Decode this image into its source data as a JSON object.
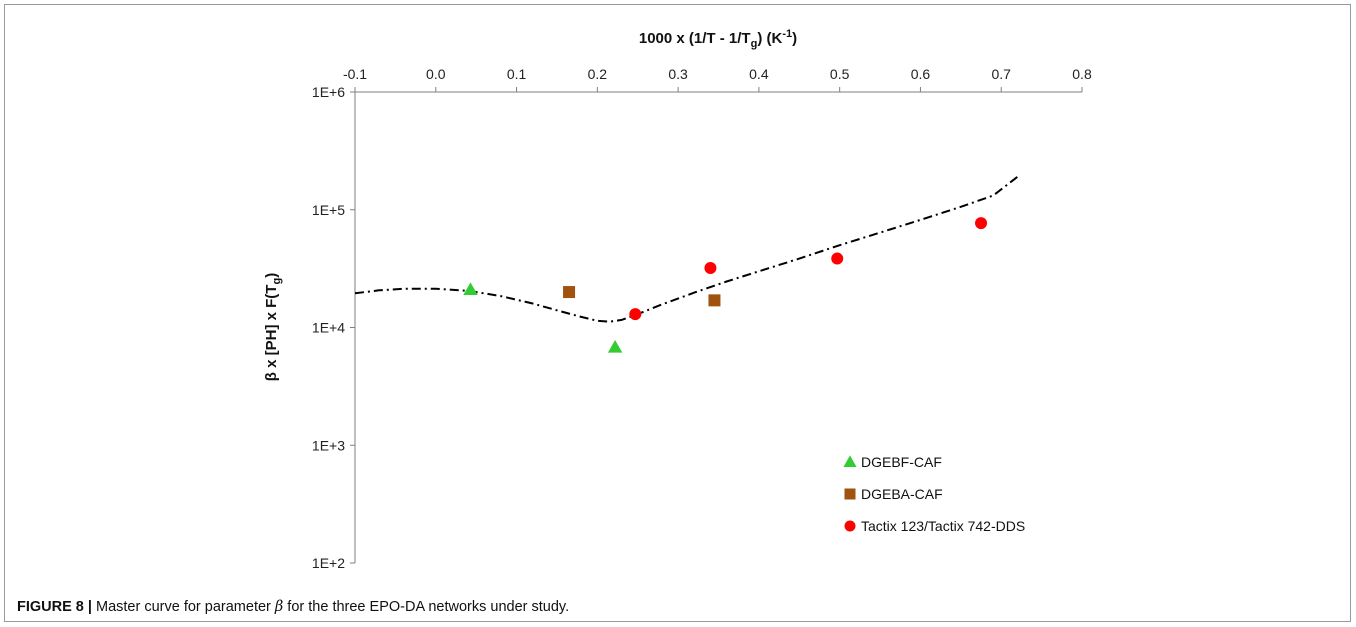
{
  "chart_data": {
    "type": "scatter",
    "x_axis": {
      "title": "1000 x (1/T - 1/Tg) (K-1)",
      "title_parts": {
        "main": "1000 x (1/T - 1/T",
        "sub": "g",
        "mid": ") (K",
        "sup": "-1",
        "end": ")"
      },
      "range": [
        -0.1,
        0.8
      ],
      "ticks": [
        -0.1,
        0.0,
        0.1,
        0.2,
        0.3,
        0.4,
        0.5,
        0.6,
        0.7,
        0.8
      ],
      "tick_labels": [
        "-0.1",
        "0.0",
        "0.1",
        "0.2",
        "0.3",
        "0.4",
        "0.5",
        "0.6",
        "0.7",
        "0.8"
      ],
      "position": "top"
    },
    "y_axis": {
      "title": "β x [PH] x F(Tg)",
      "title_parts": {
        "main": "β x [PH] x F(T",
        "sub": "g",
        "end": ")"
      },
      "scale": "log",
      "range": [
        100,
        1000000
      ],
      "ticks": [
        100,
        1000,
        10000,
        100000,
        1000000
      ],
      "tick_labels": [
        "1E+2",
        "1E+3",
        "1E+4",
        "1E+5",
        "1E+6"
      ]
    },
    "series": [
      {
        "name": "DGEBF-CAF",
        "marker": "triangle",
        "color": "#33cc33",
        "points": [
          [
            0.043,
            21000
          ],
          [
            0.222,
            6800
          ]
        ]
      },
      {
        "name": "DGEBA-CAF",
        "marker": "square",
        "color": "#a0520f",
        "points": [
          [
            0.165,
            20000
          ],
          [
            0.345,
            17000
          ]
        ]
      },
      {
        "name": "Tactix 123/Tactix 742-DDS",
        "marker": "circle",
        "color": "#ff0000",
        "points": [
          [
            0.247,
            13000
          ],
          [
            0.34,
            32000
          ],
          [
            0.497,
            38500
          ],
          [
            0.675,
            77000
          ]
        ]
      }
    ],
    "master_curve": {
      "style": "dash-dot",
      "color": "#000000",
      "points": [
        [
          -0.1,
          19500
        ],
        [
          -0.07,
          20700
        ],
        [
          -0.04,
          21300
        ],
        [
          0.0,
          21300
        ],
        [
          0.04,
          20500
        ],
        [
          0.08,
          18500
        ],
        [
          0.12,
          16000
        ],
        [
          0.15,
          14000
        ],
        [
          0.18,
          12300
        ],
        [
          0.2,
          11400
        ],
        [
          0.215,
          11200
        ],
        [
          0.23,
          11600
        ],
        [
          0.25,
          13000
        ],
        [
          0.28,
          15700
        ],
        [
          0.32,
          19800
        ],
        [
          0.36,
          24600
        ],
        [
          0.4,
          30000
        ],
        [
          0.45,
          38500
        ],
        [
          0.5,
          50000
        ],
        [
          0.55,
          64000
        ],
        [
          0.6,
          82000
        ],
        [
          0.65,
          106000
        ],
        [
          0.69,
          132000
        ],
        [
          0.72,
          190000
        ]
      ]
    },
    "legend": {
      "position": "bottom-right"
    },
    "grid": false
  },
  "caption": {
    "label": "FIGURE 8 |",
    "text_before": " Master curve for parameter ",
    "symbol": "β",
    "text_after": " for the three EPO-DA networks under study."
  }
}
